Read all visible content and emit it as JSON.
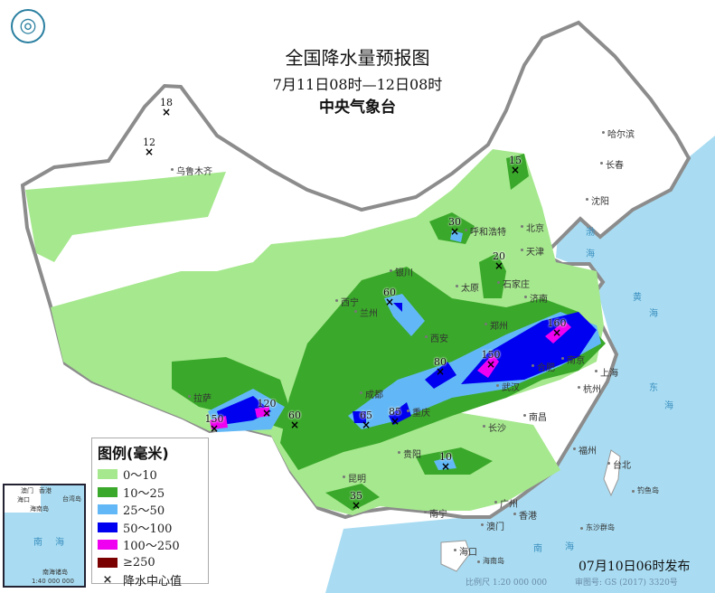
{
  "header": {
    "title": "全国降水量预报图",
    "period": "7月11日08时—12日08时",
    "issuer": "中央气象台"
  },
  "legend": {
    "title": "图例(毫米)",
    "items": [
      {
        "label": "0～10",
        "color": "#a6e88e"
      },
      {
        "label": "10～25",
        "color": "#3aa82a"
      },
      {
        "label": "25～50",
        "color": "#62b8f6"
      },
      {
        "label": "50～100",
        "color": "#0000f0"
      },
      {
        "label": "100～250",
        "color": "#f000f0"
      },
      {
        "label": "≥250",
        "color": "#7a0000"
      }
    ],
    "center_symbol": "×",
    "center_label": "降水中心值"
  },
  "centers": [
    "18",
    "12",
    "15",
    "30",
    "20",
    "60",
    "80",
    "150",
    "160",
    "65",
    "85",
    "150",
    "120",
    "60",
    "10",
    "35"
  ],
  "cities": [
    "乌鲁木齐",
    "哈尔滨",
    "长春",
    "沈阳",
    "呼和浩特",
    "北京",
    "天津",
    "石家庄",
    "太原",
    "济南",
    "银川",
    "西宁",
    "兰州",
    "郑州",
    "西安",
    "合肥",
    "南京",
    "上海",
    "杭州",
    "武汉",
    "成都",
    "重庆",
    "拉萨",
    "长沙",
    "南昌",
    "福州",
    "台北",
    "贵阳",
    "昆明",
    "南宁",
    "广州",
    "澳门",
    "香港",
    "海口",
    "海南岛",
    "东沙群岛",
    "钓鱼岛"
  ],
  "seas": [
    "渤",
    "海",
    "黄",
    "海",
    "东",
    "海",
    "南",
    "海"
  ],
  "inset": {
    "labels": [
      "澳门",
      "香港",
      "海口",
      "海南岛",
      "台湾岛",
      "南",
      "海",
      "南海诸岛"
    ],
    "scale": "1:40 000 000"
  },
  "footer": {
    "issued": "07月10日06时发布",
    "scale": "比例尺 1:20 000 000",
    "map_no": "审图号: GS (2017) 3320号"
  },
  "colors": {
    "sea": "#a9dcf2",
    "border": "#8c8c8c"
  }
}
